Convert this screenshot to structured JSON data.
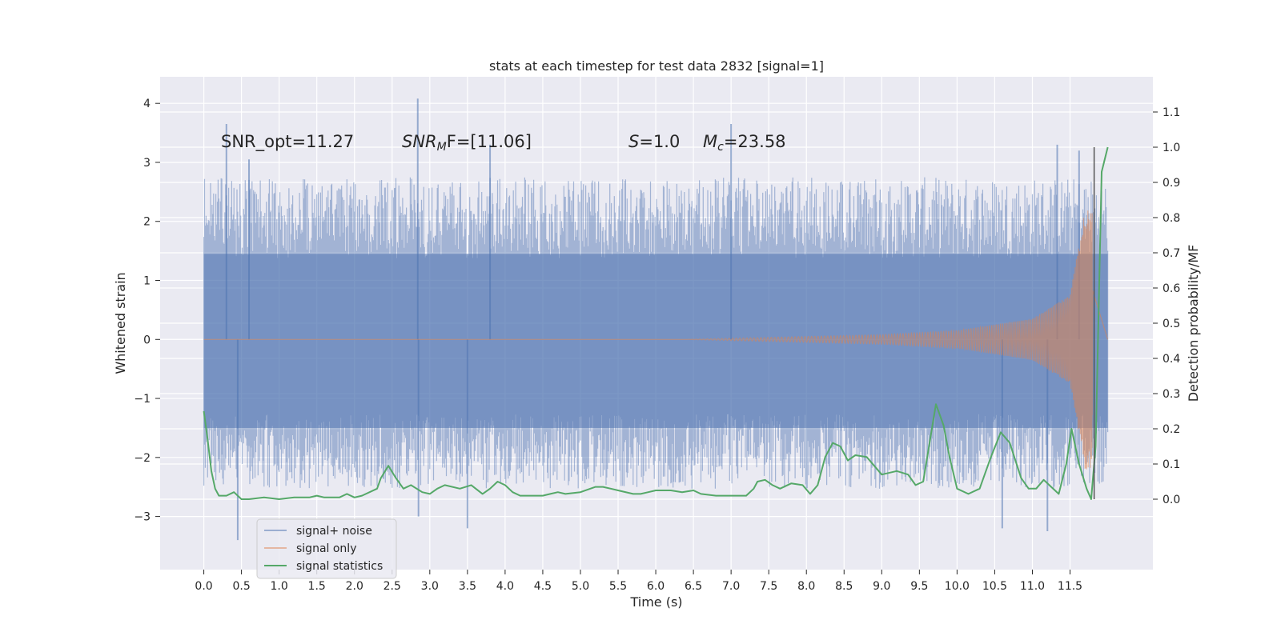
{
  "chart_data": {
    "type": "line",
    "title": "stats at each timestep for test data 2832 [signal=1]",
    "xlabel": "Time (s)",
    "ylabel_left": "Whitened strain",
    "ylabel_right": "Detection probability/MF",
    "xlim": [
      -0.58,
      12.6
    ],
    "ylim_left": [
      -3.9,
      4.45
    ],
    "ylim_right": [
      -0.2,
      1.2
    ],
    "x_ticks": [
      0.0,
      0.5,
      1.0,
      1.5,
      2.0,
      2.5,
      3.0,
      3.5,
      4.0,
      4.5,
      5.0,
      5.5,
      6.0,
      6.5,
      7.0,
      7.5,
      8.0,
      8.5,
      9.0,
      9.5,
      10.0,
      10.5,
      11.0,
      11.5
    ],
    "y_ticks_left": [
      -3,
      -2,
      -1,
      0,
      1,
      2,
      3,
      4
    ],
    "y_ticks_right": [
      0.0,
      0.1,
      0.2,
      0.3,
      0.4,
      0.5,
      0.6,
      0.7,
      0.8,
      0.9,
      1.0,
      1.1
    ],
    "grid": true,
    "legend_position": "lower-left",
    "annotations": {
      "snr_opt": "SNR_opt=11.27",
      "snr_mf_sym": "SNR",
      "snr_mf_sub": "M",
      "snr_mf_val": "F=[11.06]",
      "s_sym": "S",
      "s_val": "=1.0",
      "mc_sym": "M",
      "mc_sub": "c",
      "mc_val": "=23.58"
    },
    "merger_time": 11.82,
    "series": [
      {
        "name": "signal+ noise",
        "axis": "left",
        "color": "#4c72b0",
        "style": "noise band",
        "x_range": [
          0.0,
          12.0
        ],
        "core_band": [
          -1.5,
          1.45
        ],
        "envelope_typical": [
          -2.3,
          2.5
        ],
        "peaks": [
          {
            "x": 0.3,
            "y": 3.65
          },
          {
            "x": 0.6,
            "y": 3.05
          },
          {
            "x": 0.45,
            "y": -3.4
          },
          {
            "x": 2.84,
            "y": 4.08
          },
          {
            "x": 2.85,
            "y": -3.0
          },
          {
            "x": 3.5,
            "y": -3.2
          },
          {
            "x": 3.8,
            "y": 3.3
          },
          {
            "x": 7.0,
            "y": 3.65
          },
          {
            "x": 10.6,
            "y": -3.2
          },
          {
            "x": 11.2,
            "y": -3.25
          },
          {
            "x": 11.33,
            "y": 3.3
          },
          {
            "x": 11.62,
            "y": 3.2
          }
        ]
      },
      {
        "name": "signal only",
        "axis": "left",
        "color": "#dd8452",
        "style": "chirp",
        "start": 6.4,
        "merger": 11.8,
        "peak_amplitude": 2.2,
        "late_amplitudes": [
          {
            "t": 8.0,
            "a": 0.05
          },
          {
            "t": 9.0,
            "a": 0.08
          },
          {
            "t": 10.0,
            "a": 0.15
          },
          {
            "t": 11.0,
            "a": 0.35
          },
          {
            "t": 11.5,
            "a": 0.75
          },
          {
            "t": 11.7,
            "a": 2.2
          }
        ]
      },
      {
        "name": "signal statistics",
        "axis": "right",
        "color": "#55a868",
        "style": "line",
        "x": [
          0.0,
          0.05,
          0.1,
          0.15,
          0.2,
          0.3,
          0.4,
          0.5,
          0.6,
          0.8,
          1.0,
          1.2,
          1.4,
          1.5,
          1.6,
          1.8,
          1.9,
          2.0,
          2.1,
          2.3,
          2.35,
          2.45,
          2.55,
          2.65,
          2.75,
          2.9,
          3.0,
          3.1,
          3.2,
          3.4,
          3.55,
          3.7,
          3.8,
          3.9,
          4.0,
          4.1,
          4.2,
          4.5,
          4.6,
          4.7,
          4.8,
          5.0,
          5.2,
          5.3,
          5.5,
          5.7,
          5.8,
          5.9,
          6.0,
          6.2,
          6.35,
          6.5,
          6.6,
          6.8,
          7.0,
          7.2,
          7.3,
          7.35,
          7.45,
          7.55,
          7.65,
          7.8,
          7.95,
          8.05,
          8.15,
          8.25,
          8.35,
          8.45,
          8.55,
          8.65,
          8.8,
          9.0,
          9.2,
          9.35,
          9.45,
          9.55,
          9.65,
          9.72,
          9.82,
          9.9,
          10.0,
          10.15,
          10.3,
          10.45,
          10.58,
          10.7,
          10.85,
          10.95,
          11.05,
          11.15,
          11.25,
          11.35,
          11.45,
          11.52,
          11.62,
          11.72,
          11.78,
          11.84,
          11.92,
          12.0
        ],
        "y": [
          0.25,
          0.17,
          0.08,
          0.03,
          0.01,
          0.01,
          0.02,
          0.0,
          0.0,
          0.005,
          0.0,
          0.005,
          0.005,
          0.01,
          0.005,
          0.005,
          0.015,
          0.005,
          0.01,
          0.03,
          0.06,
          0.095,
          0.06,
          0.03,
          0.04,
          0.02,
          0.015,
          0.03,
          0.04,
          0.03,
          0.04,
          0.015,
          0.03,
          0.05,
          0.04,
          0.02,
          0.01,
          0.01,
          0.015,
          0.02,
          0.015,
          0.02,
          0.035,
          0.035,
          0.025,
          0.015,
          0.015,
          0.02,
          0.025,
          0.025,
          0.02,
          0.025,
          0.015,
          0.01,
          0.01,
          0.01,
          0.03,
          0.05,
          0.055,
          0.04,
          0.03,
          0.045,
          0.04,
          0.015,
          0.04,
          0.12,
          0.16,
          0.15,
          0.11,
          0.125,
          0.12,
          0.07,
          0.08,
          0.07,
          0.04,
          0.05,
          0.18,
          0.27,
          0.21,
          0.12,
          0.03,
          0.015,
          0.03,
          0.12,
          0.19,
          0.16,
          0.06,
          0.03,
          0.03,
          0.055,
          0.035,
          0.015,
          0.1,
          0.2,
          0.1,
          0.03,
          0.0,
          0.15,
          0.93,
          1.0
        ]
      }
    ]
  }
}
